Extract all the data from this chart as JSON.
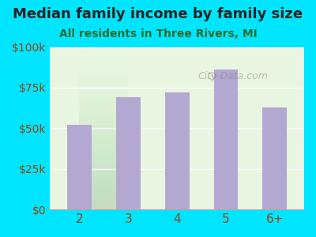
{
  "title": "Median family income by family size",
  "subtitle": "All residents in Three Rivers, MI",
  "categories": [
    "2",
    "3",
    "4",
    "5",
    "6+"
  ],
  "values": [
    52000,
    69000,
    72000,
    86000,
    63000
  ],
  "bar_color": "#b3a8d1",
  "background_outer": "#00e5ff",
  "background_inner": "#e8f5e0",
  "title_color": "#222222",
  "subtitle_color": "#2a6b2a",
  "tick_label_color": "#8b4513",
  "ylim": [
    0,
    100000
  ],
  "yticks": [
    0,
    25000,
    50000,
    75000,
    100000
  ],
  "ytick_labels": [
    "$0",
    "$25k",
    "$50k",
    "$75k",
    "$100k"
  ],
  "watermark": "City-Data.com",
  "figsize": [
    4.0,
    3.0
  ],
  "dpi": 100
}
